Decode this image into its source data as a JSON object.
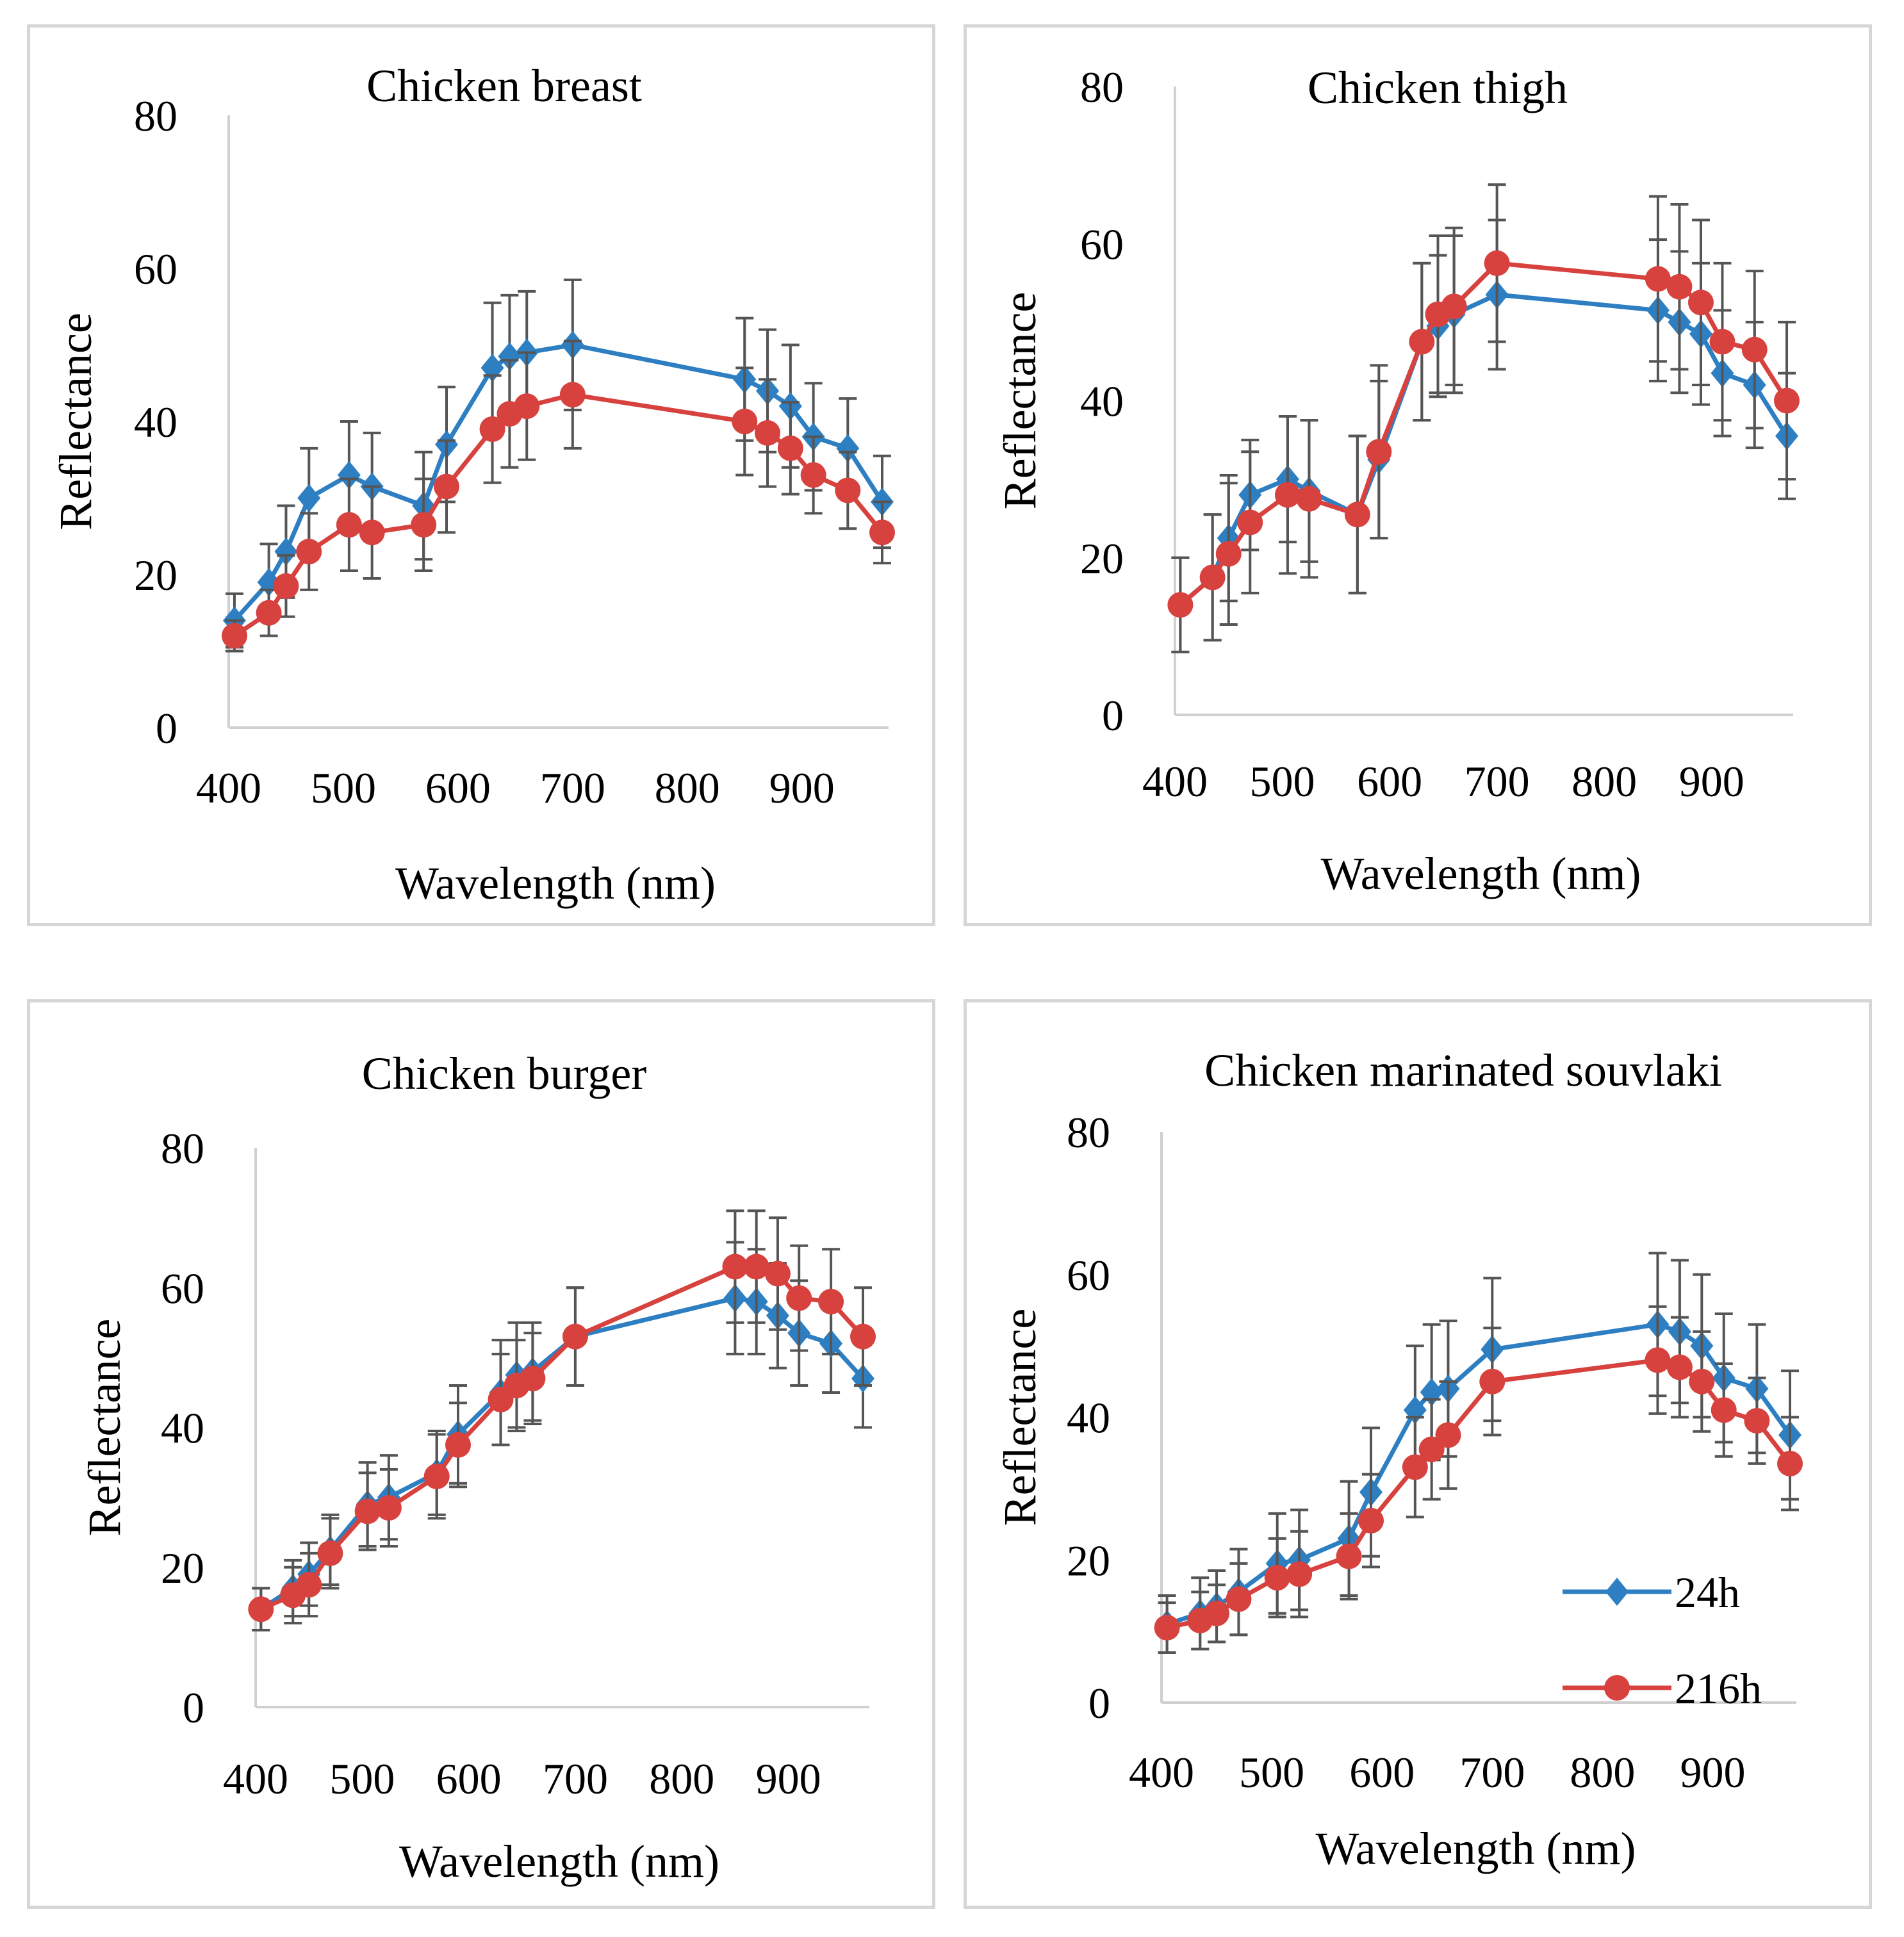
{
  "colors": {
    "series_24h": "#2e7fc2",
    "series_216h": "#d7423f",
    "error_bar": "#555555",
    "axis": "#d0d0d0"
  },
  "legend": {
    "items": [
      "24h",
      "216h"
    ],
    "placement": "inside lower-right of last panel"
  },
  "chart_data": [
    {
      "type": "line",
      "title": "Chicken breast",
      "xlabel": "Wavelength (nm)",
      "ylabel": "Reflectance",
      "xlim": [
        400,
        970
      ],
      "ylim": [
        0,
        80
      ],
      "xticks": [
        "400",
        "500",
        "600",
        "700",
        "800",
        "900"
      ],
      "yticks": [
        "0",
        "20",
        "40",
        "60",
        "80"
      ],
      "x": [
        405,
        435,
        450,
        470,
        505,
        525,
        570,
        590,
        630,
        645,
        660,
        700,
        850,
        870,
        890,
        910,
        940,
        970
      ],
      "series": [
        {
          "name": "24h",
          "marker": "diamond",
          "values": [
            14,
            19,
            23,
            30,
            33,
            31.5,
            29,
            37,
            47,
            48.5,
            49,
            50,
            45.5,
            44,
            42,
            38,
            36.5,
            29.5
          ],
          "errors": [
            3.5,
            5,
            6,
            6.5,
            7,
            7,
            7,
            7.5,
            8.5,
            8,
            8,
            8.5,
            8,
            8,
            8,
            7,
            6.5,
            6
          ]
        },
        {
          "name": "216h",
          "marker": "circle",
          "values": [
            12,
            15,
            18.5,
            23,
            26.5,
            25.5,
            26.5,
            31.5,
            39,
            41,
            42,
            43.5,
            40,
            38.5,
            36.5,
            33,
            31,
            25.5
          ],
          "errors": [
            2,
            3,
            4,
            5,
            6,
            6,
            6,
            6,
            7,
            7,
            7,
            7,
            7,
            7,
            6,
            5,
            5,
            4
          ]
        }
      ]
    },
    {
      "type": "line",
      "title": "Chicken thigh",
      "xlabel": "Wavelength (nm)",
      "ylabel": "Reflectance",
      "xlim": [
        400,
        970
      ],
      "ylim": [
        0,
        80
      ],
      "xticks": [
        "400",
        "500",
        "600",
        "700",
        "800",
        "900"
      ],
      "yticks": [
        "0",
        "20",
        "40",
        "60",
        "80"
      ],
      "x": [
        405,
        435,
        450,
        470,
        505,
        525,
        570,
        590,
        630,
        645,
        660,
        700,
        850,
        870,
        890,
        910,
        940,
        970
      ],
      "series": [
        {
          "name": "24h",
          "marker": "diamond",
          "values": [
            14,
            17.5,
            22.5,
            28,
            30,
            28.5,
            25.5,
            32.5,
            47.5,
            49.5,
            51,
            53.5,
            51.5,
            50,
            48.5,
            43.5,
            42,
            35.5
          ],
          "errors": [
            6,
            8,
            8,
            7,
            8,
            9,
            10,
            10,
            10,
            9,
            10,
            9.5,
            9,
            9,
            9,
            8,
            8,
            8
          ]
        },
        {
          "name": "216h",
          "marker": "circle",
          "values": [
            14,
            17.5,
            20.5,
            24.5,
            28,
            27.5,
            25.5,
            33.5,
            47.5,
            51,
            52,
            57.5,
            55.5,
            54.5,
            52.5,
            47.5,
            46.5,
            40
          ],
          "errors": [
            6,
            8,
            9,
            9,
            10,
            10,
            10,
            11,
            10,
            10,
            10,
            10,
            10.5,
            10.5,
            10.5,
            10,
            10,
            10
          ]
        }
      ]
    },
    {
      "type": "line",
      "title": "Chicken burger",
      "xlabel": "Wavelength (nm)",
      "ylabel": "Reflectance",
      "xlim": [
        400,
        970
      ],
      "ylim": [
        0,
        80
      ],
      "xticks": [
        "400",
        "500",
        "600",
        "700",
        "800",
        "900"
      ],
      "yticks": [
        "0",
        "20",
        "40",
        "60",
        "80"
      ],
      "x": [
        405,
        435,
        450,
        470,
        505,
        525,
        570,
        590,
        630,
        645,
        660,
        700,
        850,
        870,
        890,
        910,
        940,
        970
      ],
      "series": [
        {
          "name": "24h",
          "marker": "diamond",
          "values": [
            14,
            17,
            19,
            22.5,
            29,
            30,
            33.5,
            39,
            45,
            47.5,
            48,
            53,
            58.5,
            58,
            56,
            53.5,
            52,
            47
          ],
          "errors": [
            3,
            4,
            4.5,
            5,
            6,
            6,
            6,
            7,
            7.5,
            7.5,
            7,
            7,
            8,
            7.5,
            7.5,
            7.5,
            7,
            7
          ]
        },
        {
          "name": "216h",
          "marker": "circle",
          "values": [
            14,
            16,
            17.5,
            22,
            28,
            28.5,
            33,
            37.5,
            44,
            46,
            47,
            53,
            63,
            63,
            62,
            58.5,
            58,
            53
          ],
          "errors": [
            3,
            4,
            4.5,
            5,
            5.5,
            5.5,
            6,
            6,
            6.5,
            6.5,
            6.5,
            7,
            8,
            8,
            8,
            7.5,
            7.5,
            7
          ]
        }
      ]
    },
    {
      "type": "line",
      "title": "Chicken marinated souvlaki",
      "xlabel": "Wavelength (nm)",
      "ylabel": "Reflectance",
      "xlim": [
        400,
        970
      ],
      "ylim": [
        0,
        80
      ],
      "xticks": [
        "400",
        "500",
        "600",
        "700",
        "800",
        "900"
      ],
      "yticks": [
        "0",
        "20",
        "40",
        "60",
        "80"
      ],
      "x": [
        405,
        435,
        450,
        470,
        505,
        525,
        570,
        590,
        630,
        645,
        660,
        700,
        850,
        870,
        890,
        910,
        940,
        970
      ],
      "series": [
        {
          "name": "24h",
          "marker": "diamond",
          "values": [
            11,
            12.5,
            13.5,
            15.5,
            19.5,
            20,
            23,
            29.5,
            41,
            43.5,
            44,
            49.5,
            53,
            52,
            50,
            45.5,
            44,
            37.5
          ],
          "errors": [
            4,
            5,
            5,
            6,
            7,
            7,
            8,
            9,
            9,
            9.5,
            9.5,
            10,
            10,
            10,
            10,
            9,
            9,
            9
          ]
        },
        {
          "name": "216h",
          "marker": "circle",
          "values": [
            10.5,
            11.5,
            12.5,
            14.5,
            17.5,
            18,
            20.5,
            25.5,
            33,
            35.5,
            37.5,
            45,
            48,
            47,
            45,
            41,
            39.5,
            33.5
          ],
          "errors": [
            3.5,
            4,
            4,
            5,
            5.5,
            6,
            6,
            6.5,
            7,
            7,
            7.5,
            7.5,
            7.5,
            7,
            7,
            6.5,
            6,
            6.5
          ]
        }
      ]
    }
  ]
}
